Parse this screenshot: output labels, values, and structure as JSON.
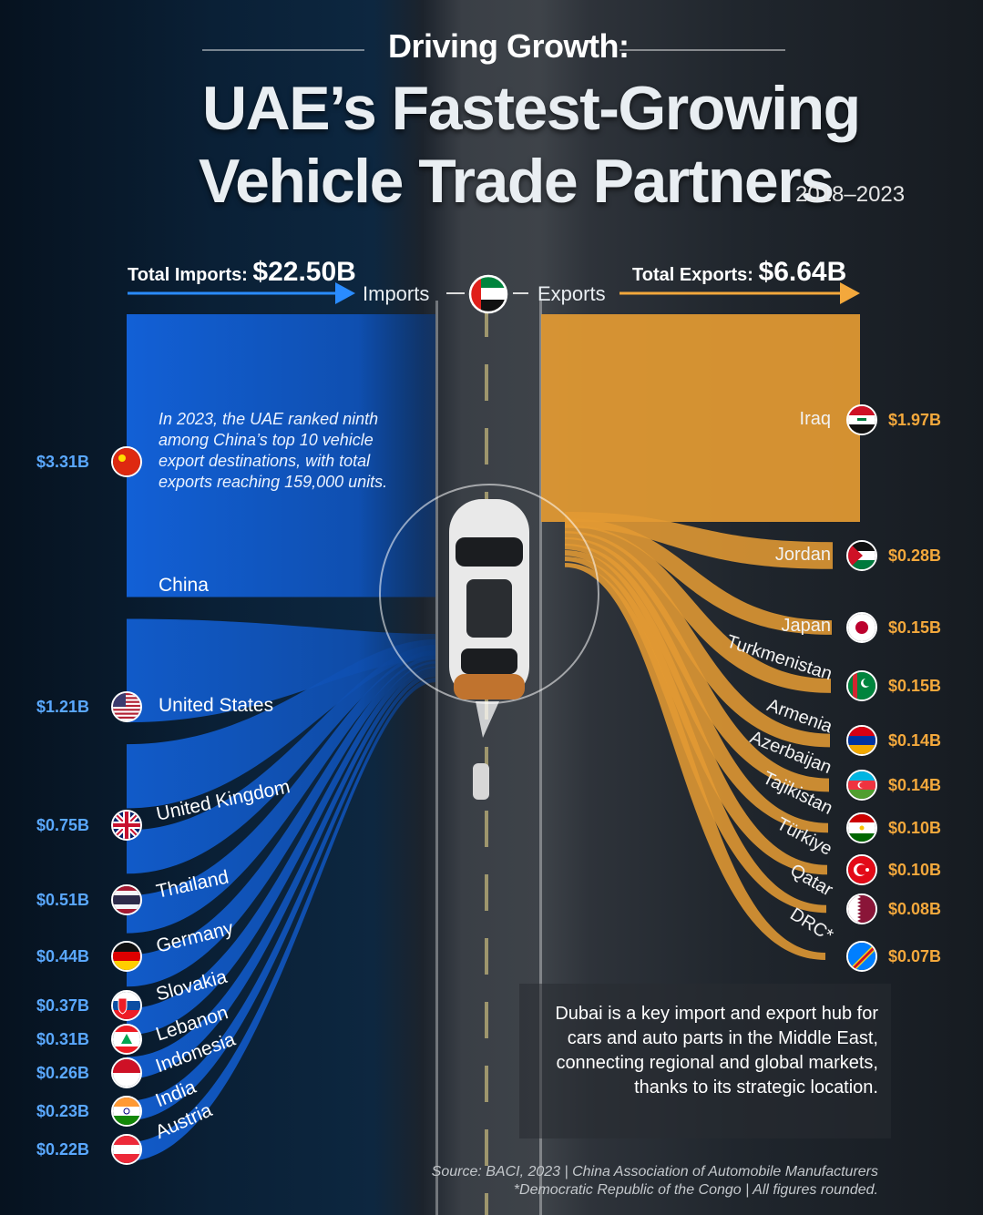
{
  "header": {
    "title_small": "Driving Growth:",
    "title_line1": "UAE’s Fastest-Growing",
    "title_line2": "Vehicle Trade Partners",
    "years": "2018–2023"
  },
  "totals": {
    "imports_label": "Total Imports:",
    "imports_value": "$22.50B",
    "exports_label": "Total Exports:",
    "exports_value": "$6.64B"
  },
  "flow_labels": {
    "imports": "Imports",
    "exports": "Exports"
  },
  "notes": {
    "china_note": "In 2023, the UAE ranked ninth among China’s top 10 vehicle export destinations, with total exports reaching 159,000 units.",
    "dubai_note": "Dubai is a key import and export hub for cars and auto parts in the Middle East, connecting regional and global markets, thanks to its strategic location."
  },
  "source": {
    "line1": "Source: BACI, 2023 | China Association of Automobile Manufacturers",
    "line2": "*Democratic Republic of the Congo | All figures rounded."
  },
  "colors": {
    "imports": "#1565d8",
    "exports": "#e29a33",
    "imports_text": "#5aa8ff",
    "exports_text": "#f3a83c"
  },
  "chart_data": {
    "type": "bar",
    "series": [
      {
        "name": "Imports",
        "unit": "$B",
        "categories": [
          "China",
          "United States",
          "United Kingdom",
          "Thailand",
          "Germany",
          "Slovakia",
          "Lebanon",
          "Indonesia",
          "India",
          "Austria"
        ],
        "values": [
          3.31,
          1.21,
          0.75,
          0.51,
          0.44,
          0.37,
          0.31,
          0.26,
          0.23,
          0.22
        ],
        "labels": [
          "$3.31B",
          "$1.21B",
          "$0.75B",
          "$0.51B",
          "$0.44B",
          "$0.37B",
          "$0.31B",
          "$0.26B",
          "$0.23B",
          "$0.22B"
        ],
        "flags": [
          "china-flag",
          "usa-flag",
          "uk-flag",
          "thailand-flag",
          "germany-flag",
          "slovakia-flag",
          "lebanon-flag",
          "indonesia-flag",
          "india-flag",
          "austria-flag"
        ]
      },
      {
        "name": "Exports",
        "unit": "$B",
        "categories": [
          "Iraq",
          "Jordan",
          "Japan",
          "Turkmenistan",
          "Armenia",
          "Azerbaijan",
          "Tajikistan",
          "Türkiye",
          "Qatar",
          "DRC*"
        ],
        "values": [
          1.97,
          0.28,
          0.15,
          0.15,
          0.14,
          0.14,
          0.1,
          0.1,
          0.08,
          0.07
        ],
        "labels": [
          "$1.97B",
          "$0.28B",
          "$0.15B",
          "$0.15B",
          "$0.14B",
          "$0.14B",
          "$0.10B",
          "$0.10B",
          "$0.08B",
          "$0.07B"
        ],
        "flags": [
          "iraq-flag",
          "jordan-flag",
          "japan-flag",
          "turkmenistan-flag",
          "armenia-flag",
          "azerbaijan-flag",
          "tajikistan-flag",
          "turkiye-flag",
          "qatar-flag",
          "drc-flag"
        ]
      }
    ]
  }
}
